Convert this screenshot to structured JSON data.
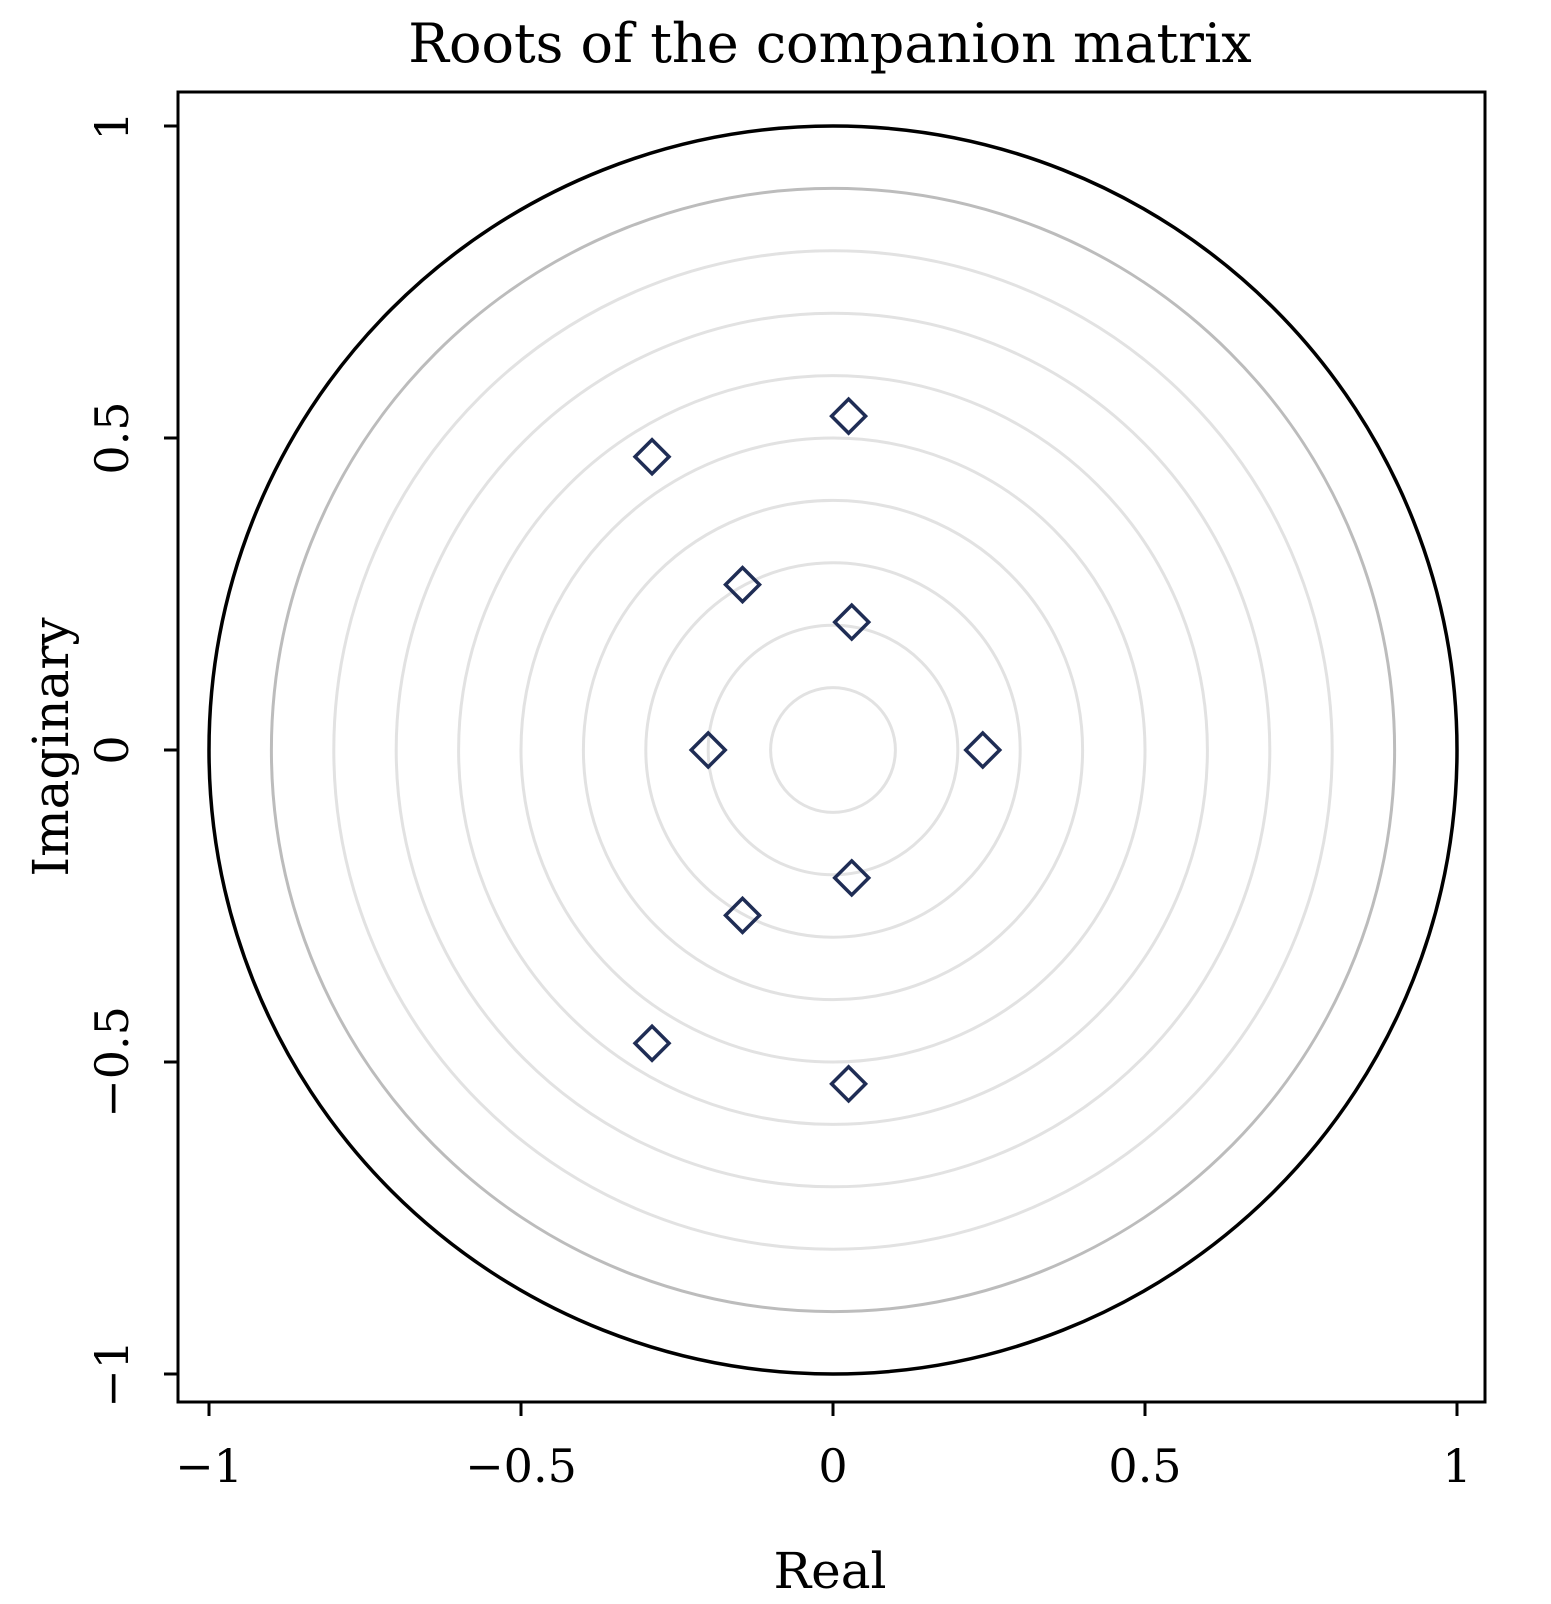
{
  "chart_data": {
    "type": "scatter",
    "title": "Roots of the companion matrix",
    "xlabel": "Real",
    "ylabel": "Imaginary",
    "xlim": [
      -1.05,
      1.05
    ],
    "ylim": [
      -1.06,
      1.06
    ],
    "x_ticks": [
      -1,
      -0.5,
      0,
      0.5,
      1
    ],
    "y_ticks": [
      -1,
      -0.5,
      0,
      0.5,
      1
    ],
    "x_tick_labels": [
      "−1",
      "−0.5",
      "0",
      "0.5",
      "1"
    ],
    "y_tick_labels": [
      "−1",
      "−0.5",
      "0",
      "0.5",
      "1"
    ],
    "grid": false,
    "unit_circle_radius": 1,
    "reference_circle_radius": 0.9,
    "concentric_circle_radii": [
      0.1,
      0.2,
      0.3,
      0.4,
      0.5,
      0.6,
      0.7,
      0.8
    ],
    "marker": "hollow-diamond",
    "marker_color": "#1f2d55",
    "unit_circle_color": "#000000",
    "reference_circle_color": "#bcbcbc",
    "concentric_circle_color": "#e2e2e2",
    "points": [
      {
        "x": 0.025,
        "y": 0.535
      },
      {
        "x": -0.29,
        "y": 0.47
      },
      {
        "x": -0.145,
        "y": 0.265
      },
      {
        "x": 0.03,
        "y": 0.205
      },
      {
        "x": -0.2,
        "y": 0.0
      },
      {
        "x": 0.24,
        "y": 0.0
      },
      {
        "x": 0.03,
        "y": -0.205
      },
      {
        "x": -0.145,
        "y": -0.265
      },
      {
        "x": -0.29,
        "y": -0.47
      },
      {
        "x": 0.025,
        "y": -0.535
      }
    ]
  }
}
